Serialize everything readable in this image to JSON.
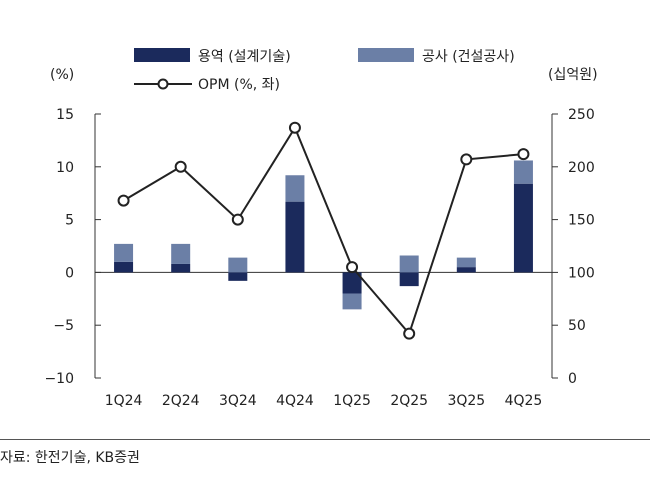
{
  "chart_data": {
    "type": "bar+line",
    "categories": [
      "1Q24",
      "2Q24",
      "3Q24",
      "4Q24",
      "1Q25",
      "2Q25",
      "3Q25",
      "4Q25"
    ],
    "series": [
      {
        "name": "용역 (설계기술)",
        "type": "bar",
        "axis": "left",
        "color": "#1b2a5c",
        "values": [
          1.0,
          0.8,
          -0.8,
          6.7,
          -2.0,
          -1.3,
          0.5,
          8.4
        ]
      },
      {
        "name": "공사 (건설공사)",
        "type": "bar",
        "axis": "left",
        "color": "#6b7fa6",
        "values": [
          1.7,
          1.9,
          1.4,
          2.5,
          -1.5,
          1.6,
          0.9,
          2.2
        ]
      },
      {
        "name": "OPM (%, 좌)",
        "type": "line",
        "axis": "left",
        "color": "#222222",
        "values": [
          6.8,
          10.0,
          5.0,
          13.7,
          0.5,
          -5.8,
          10.7,
          11.2
        ]
      }
    ],
    "left_axis": {
      "unit": "(%)",
      "ylim": [
        -10,
        15
      ],
      "ticks": [
        "15",
        "10",
        "5",
        "0",
        "−5",
        "−10"
      ],
      "tick_values": [
        15,
        10,
        5,
        0,
        -5,
        -10
      ]
    },
    "right_axis": {
      "unit": "(십억원)",
      "ylim": [
        0,
        250
      ],
      "ticks": [
        "250",
        "200",
        "150",
        "100",
        "50",
        "0"
      ],
      "tick_values": [
        250,
        200,
        150,
        100,
        50,
        0
      ]
    },
    "legend_position": "top",
    "grid": false
  },
  "source": "자료: 한전기술, KB증권"
}
